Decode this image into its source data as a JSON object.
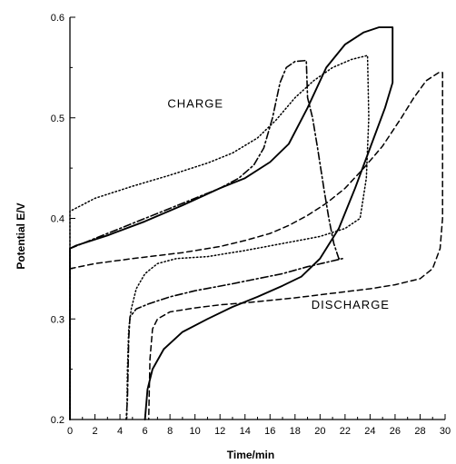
{
  "chart_data": {
    "type": "line",
    "title": "",
    "xlabel": "Time/min",
    "ylabel": "Potential E/V",
    "xlim": [
      0,
      30
    ],
    "ylim": [
      0.2,
      0.6
    ],
    "x_ticks": [
      "0",
      "2",
      "4",
      "6",
      "8",
      "10",
      "12",
      "14",
      "16",
      "18",
      "20",
      "22",
      "24",
      "26",
      "28",
      "30"
    ],
    "y_ticks": [
      "0.2",
      "0.3",
      "0.4",
      "0.5",
      "0.6"
    ],
    "grid": false,
    "legend": "none",
    "annotations": [
      {
        "text": "CHARGE",
        "x": 7.8,
        "y": 0.51
      },
      {
        "text": "DISCHARGE",
        "x": 19.3,
        "y": 0.31
      }
    ],
    "series": [
      {
        "style": "solid",
        "points": [
          [
            0,
            0.2
          ],
          [
            0,
            0.37
          ],
          [
            0.5,
            0.373
          ],
          [
            3,
            0.383
          ],
          [
            6,
            0.397
          ],
          [
            9,
            0.413
          ],
          [
            12,
            0.43
          ],
          [
            14,
            0.44
          ],
          [
            16,
            0.456
          ],
          [
            17.5,
            0.474
          ],
          [
            19,
            0.51
          ],
          [
            20.5,
            0.55
          ],
          [
            22,
            0.573
          ],
          [
            23.5,
            0.585
          ],
          [
            24.7,
            0.59
          ],
          [
            25.8,
            0.59
          ],
          [
            25.8,
            0.535
          ],
          [
            25.2,
            0.51
          ],
          [
            24,
            0.47
          ],
          [
            22.8,
            0.43
          ],
          [
            21.5,
            0.39
          ],
          [
            20,
            0.36
          ],
          [
            18.5,
            0.342
          ],
          [
            17,
            0.333
          ],
          [
            15,
            0.322
          ],
          [
            13,
            0.312
          ],
          [
            11,
            0.3
          ],
          [
            9,
            0.287
          ],
          [
            7.5,
            0.27
          ],
          [
            6.6,
            0.25
          ],
          [
            6.2,
            0.23
          ],
          [
            6,
            0.2
          ]
        ]
      },
      {
        "style": "dashdot",
        "points": [
          [
            0,
            0.37
          ],
          [
            2,
            0.38
          ],
          [
            4,
            0.39
          ],
          [
            7,
            0.405
          ],
          [
            10,
            0.42
          ],
          [
            12,
            0.43
          ],
          [
            13.5,
            0.44
          ],
          [
            14.7,
            0.453
          ],
          [
            15.5,
            0.47
          ],
          [
            16.2,
            0.5
          ],
          [
            16.8,
            0.535
          ],
          [
            17.3,
            0.55
          ],
          [
            18,
            0.556
          ],
          [
            18.9,
            0.557
          ],
          [
            19,
            0.52
          ],
          [
            19.4,
            0.5
          ],
          [
            19.8,
            0.47
          ],
          [
            20.3,
            0.43
          ],
          [
            20.7,
            0.4
          ],
          [
            21.1,
            0.375
          ],
          [
            21.5,
            0.36
          ],
          [
            21.8,
            0.36
          ],
          [
            19,
            0.352
          ],
          [
            17,
            0.345
          ],
          [
            15,
            0.34
          ],
          [
            13,
            0.335
          ],
          [
            10,
            0.328
          ],
          [
            8,
            0.322
          ],
          [
            6.3,
            0.315
          ],
          [
            5.3,
            0.31
          ],
          [
            4.8,
            0.302
          ],
          [
            4.7,
            0.28
          ],
          [
            4.6,
            0.22
          ],
          [
            4.5,
            0.2
          ]
        ]
      },
      {
        "style": "dashed",
        "points": [
          [
            0,
            0.35
          ],
          [
            2,
            0.355
          ],
          [
            5,
            0.36
          ],
          [
            9,
            0.366
          ],
          [
            12,
            0.372
          ],
          [
            14,
            0.378
          ],
          [
            16,
            0.385
          ],
          [
            17.5,
            0.393
          ],
          [
            19,
            0.403
          ],
          [
            20.5,
            0.415
          ],
          [
            22,
            0.43
          ],
          [
            23.5,
            0.45
          ],
          [
            25,
            0.472
          ],
          [
            26.5,
            0.5
          ],
          [
            27.5,
            0.52
          ],
          [
            28.5,
            0.537
          ],
          [
            29.5,
            0.545
          ],
          [
            29.8,
            0.545
          ],
          [
            29.8,
            0.4
          ],
          [
            29.6,
            0.37
          ],
          [
            29,
            0.35
          ],
          [
            28,
            0.34
          ],
          [
            26,
            0.334
          ],
          [
            24,
            0.33
          ],
          [
            22,
            0.327
          ],
          [
            18,
            0.321
          ],
          [
            14,
            0.316
          ],
          [
            12,
            0.314
          ],
          [
            10,
            0.311
          ],
          [
            8,
            0.307
          ],
          [
            7,
            0.3
          ],
          [
            6.6,
            0.29
          ],
          [
            6.4,
            0.26
          ],
          [
            6.3,
            0.2
          ]
        ]
      },
      {
        "style": "dotted",
        "points": [
          [
            0,
            0.2
          ],
          [
            0,
            0.407
          ],
          [
            2,
            0.42
          ],
          [
            5,
            0.432
          ],
          [
            8,
            0.443
          ],
          [
            11,
            0.455
          ],
          [
            13,
            0.465
          ],
          [
            15,
            0.48
          ],
          [
            16.5,
            0.498
          ],
          [
            18,
            0.52
          ],
          [
            19.5,
            0.537
          ],
          [
            21,
            0.55
          ],
          [
            22.5,
            0.558
          ],
          [
            23.8,
            0.562
          ],
          [
            23.9,
            0.5
          ],
          [
            23.7,
            0.44
          ],
          [
            23.2,
            0.4
          ],
          [
            22,
            0.39
          ],
          [
            20,
            0.382
          ],
          [
            17,
            0.375
          ],
          [
            14,
            0.368
          ],
          [
            11,
            0.362
          ],
          [
            8.5,
            0.36
          ],
          [
            7,
            0.355
          ],
          [
            6,
            0.345
          ],
          [
            5.3,
            0.33
          ],
          [
            4.9,
            0.31
          ],
          [
            4.7,
            0.29
          ],
          [
            4.6,
            0.25
          ],
          [
            4.55,
            0.2
          ]
        ]
      }
    ]
  }
}
